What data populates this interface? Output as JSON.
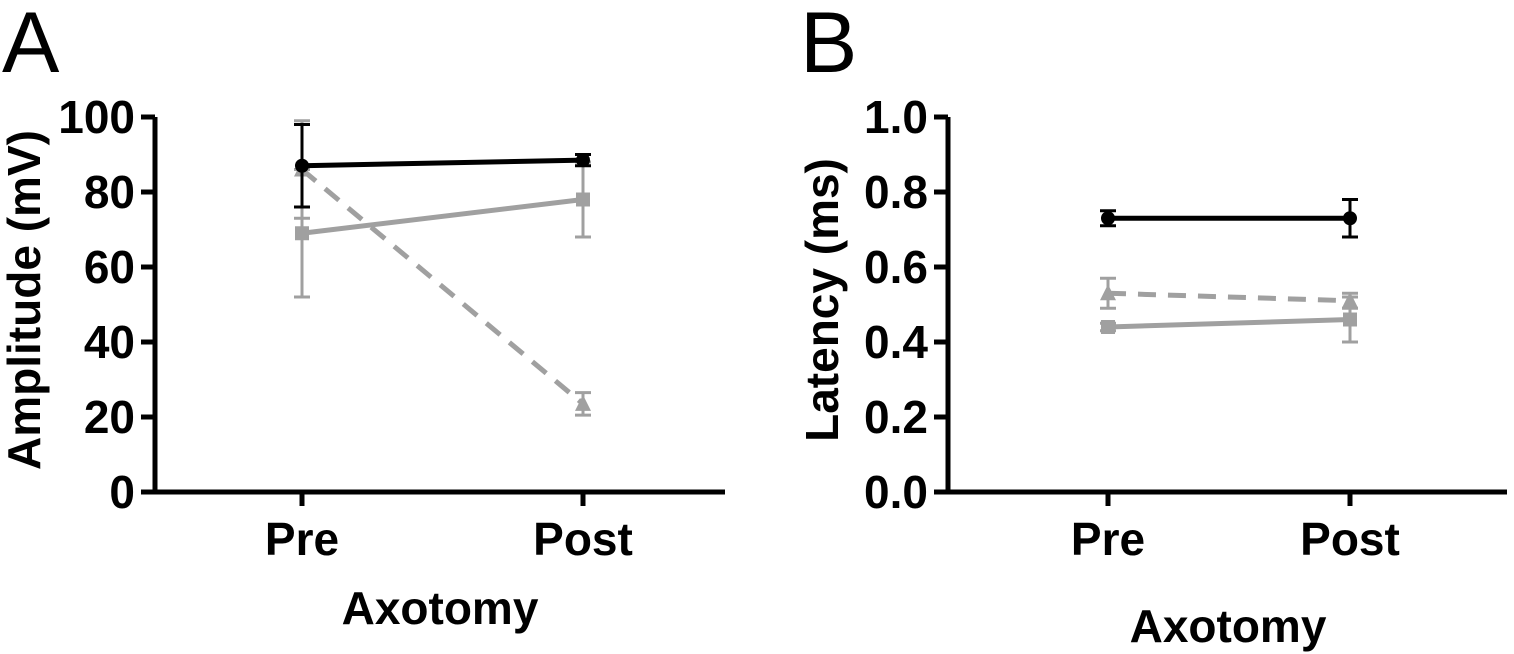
{
  "figure": {
    "panel_labels": [
      "A",
      "B"
    ]
  },
  "colors": {
    "black": "#000000",
    "gray": "#a0a0a0"
  },
  "chart_data": [
    {
      "type": "line",
      "panel": "A",
      "title": "",
      "xlabel": "Axotomy",
      "ylabel": "Amplitude (mV)",
      "categories": [
        "Pre",
        "Post"
      ],
      "ylim": [
        0,
        100
      ],
      "yticks": [
        "0",
        "20",
        "40",
        "60",
        "80",
        "100"
      ],
      "grid": false,
      "series": [
        {
          "values": [
            87,
            88.5
          ],
          "errors": [
            11,
            1.5
          ],
          "color": "#000000",
          "marker": "circle",
          "dash": "solid"
        },
        {
          "values": [
            69,
            78
          ],
          "errors": [
            17,
            10
          ],
          "color": "#a0a0a0",
          "marker": "square",
          "dash": "solid"
        },
        {
          "values": [
            86,
            23.5
          ],
          "errors": [
            13,
            3
          ],
          "color": "#a0a0a0",
          "marker": "triangle",
          "dash": "dashed"
        }
      ]
    },
    {
      "type": "line",
      "panel": "B",
      "title": "",
      "xlabel": "Axotomy",
      "ylabel": "Latency (ms)",
      "categories": [
        "Pre",
        "Post"
      ],
      "ylim": [
        0,
        1.0
      ],
      "yticks": [
        "0.0",
        "0.2",
        "0.4",
        "0.6",
        "0.8",
        "1.0"
      ],
      "grid": false,
      "series": [
        {
          "values": [
            0.73,
            0.73
          ],
          "errors": [
            0.02,
            0.05
          ],
          "color": "#000000",
          "marker": "circle",
          "dash": "solid"
        },
        {
          "values": [
            0.44,
            0.46
          ],
          "errors": [
            0.01,
            0.06
          ],
          "color": "#a0a0a0",
          "marker": "square",
          "dash": "solid"
        },
        {
          "values": [
            0.53,
            0.51
          ],
          "errors": [
            0.04,
            0.02
          ],
          "color": "#a0a0a0",
          "marker": "triangle",
          "dash": "dashed"
        }
      ]
    }
  ]
}
